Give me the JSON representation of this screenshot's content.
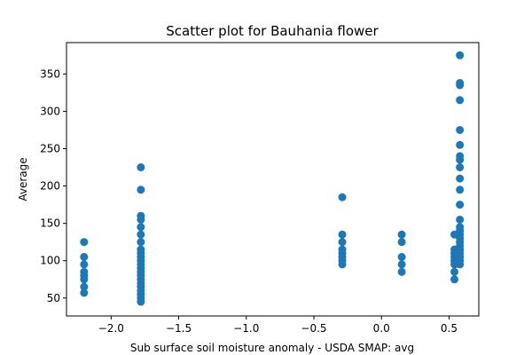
{
  "chart_data": {
    "type": "scatter",
    "title": "Scatter plot for Bauhania flower",
    "xlabel": "Sub surface soil moisture anomaly - USDA SMAP: avg",
    "ylabel": "Average",
    "xlim": [
      -2.33,
      0.72
    ],
    "ylim": [
      26,
      392
    ],
    "xticks": [
      -2.0,
      -1.5,
      -1.0,
      -0.5,
      0.0,
      0.5
    ],
    "xtick_labels": [
      "−2.0",
      "−1.5",
      "−1.0",
      "−0.5",
      "0.0",
      "0.5"
    ],
    "yticks": [
      50,
      100,
      150,
      200,
      250,
      300,
      350
    ],
    "ytick_labels": [
      "50",
      "100",
      "150",
      "200",
      "250",
      "300",
      "350"
    ],
    "grid": false,
    "marker_color": "#1f77b4",
    "series": [
      {
        "points": [
          [
            -2.2,
            57
          ],
          [
            -2.2,
            65
          ],
          [
            -2.2,
            75
          ],
          [
            -2.2,
            80
          ],
          [
            -2.2,
            85
          ],
          [
            -2.2,
            95
          ],
          [
            -2.2,
            105
          ],
          [
            -2.2,
            125
          ],
          [
            -1.78,
            45
          ],
          [
            -1.78,
            50
          ],
          [
            -1.78,
            55
          ],
          [
            -1.78,
            60
          ],
          [
            -1.78,
            65
          ],
          [
            -1.78,
            70
          ],
          [
            -1.78,
            75
          ],
          [
            -1.78,
            80
          ],
          [
            -1.78,
            85
          ],
          [
            -1.78,
            90
          ],
          [
            -1.78,
            95
          ],
          [
            -1.78,
            100
          ],
          [
            -1.78,
            105
          ],
          [
            -1.78,
            110
          ],
          [
            -1.78,
            115
          ],
          [
            -1.78,
            125
          ],
          [
            -1.78,
            135
          ],
          [
            -1.78,
            145
          ],
          [
            -1.78,
            155
          ],
          [
            -1.78,
            160
          ],
          [
            -1.78,
            195
          ],
          [
            -1.78,
            225
          ],
          [
            -0.29,
            95
          ],
          [
            -0.29,
            100
          ],
          [
            -0.29,
            105
          ],
          [
            -0.29,
            110
          ],
          [
            -0.29,
            115
          ],
          [
            -0.29,
            125
          ],
          [
            -0.29,
            135
          ],
          [
            -0.29,
            185
          ],
          [
            0.15,
            85
          ],
          [
            0.15,
            95
          ],
          [
            0.15,
            105
          ],
          [
            0.15,
            125
          ],
          [
            0.15,
            135
          ],
          [
            0.54,
            75
          ],
          [
            0.54,
            85
          ],
          [
            0.54,
            95
          ],
          [
            0.54,
            100
          ],
          [
            0.54,
            105
          ],
          [
            0.54,
            110
          ],
          [
            0.54,
            115
          ],
          [
            0.54,
            135
          ],
          [
            0.58,
            95
          ],
          [
            0.58,
            100
          ],
          [
            0.58,
            105
          ],
          [
            0.58,
            110
          ],
          [
            0.58,
            115
          ],
          [
            0.58,
            120
          ],
          [
            0.58,
            125
          ],
          [
            0.58,
            130
          ],
          [
            0.58,
            135
          ],
          [
            0.58,
            140
          ],
          [
            0.58,
            145
          ],
          [
            0.58,
            155
          ],
          [
            0.58,
            175
          ],
          [
            0.58,
            195
          ],
          [
            0.58,
            210
          ],
          [
            0.58,
            225
          ],
          [
            0.58,
            235
          ],
          [
            0.58,
            240
          ],
          [
            0.58,
            255
          ],
          [
            0.58,
            275
          ],
          [
            0.58,
            315
          ],
          [
            0.58,
            335
          ],
          [
            0.58,
            338
          ],
          [
            0.58,
            375
          ]
        ]
      }
    ]
  }
}
